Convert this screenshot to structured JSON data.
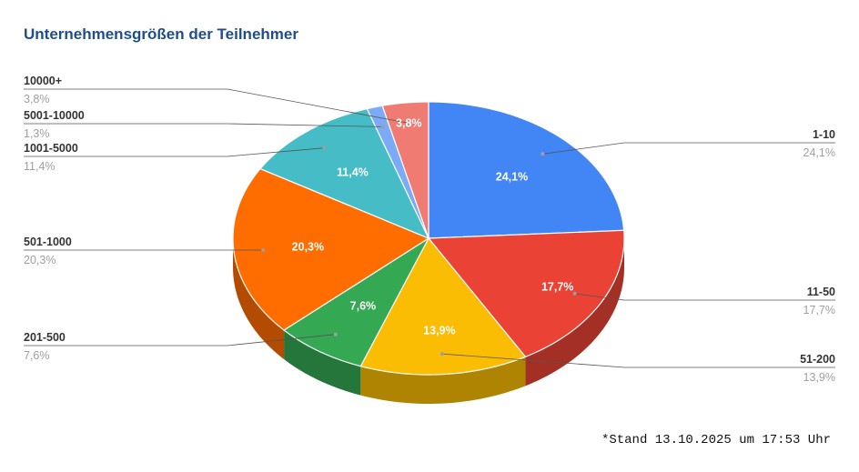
{
  "chart_data": {
    "type": "pie",
    "title": "Unternehmensgrößen der Teilnehmer",
    "footnote": "*Stand 13.10.2025 um 17:53 Uhr",
    "slices": [
      {
        "label": "1-10",
        "value": 24.1,
        "display": "24,1%",
        "color": "#4285f4"
      },
      {
        "label": "11-50",
        "value": 17.7,
        "display": "17,7%",
        "color": "#ea4335"
      },
      {
        "label": "51-200",
        "value": 13.9,
        "display": "13,9%",
        "color": "#fbbc04"
      },
      {
        "label": "201-500",
        "value": 7.6,
        "display": "7,6%",
        "color": "#34a853"
      },
      {
        "label": "501-1000",
        "value": 20.3,
        "display": "20,3%",
        "color": "#ff6d01"
      },
      {
        "label": "1001-5000",
        "value": 11.4,
        "display": "11,4%",
        "color": "#46bdc6"
      },
      {
        "label": "5001-10000",
        "value": 1.3,
        "display": "1,3%",
        "color": "#7baaf7"
      },
      {
        "label": "10000+",
        "value": 3.8,
        "display": "3,8%",
        "color": "#f07b72"
      }
    ]
  }
}
